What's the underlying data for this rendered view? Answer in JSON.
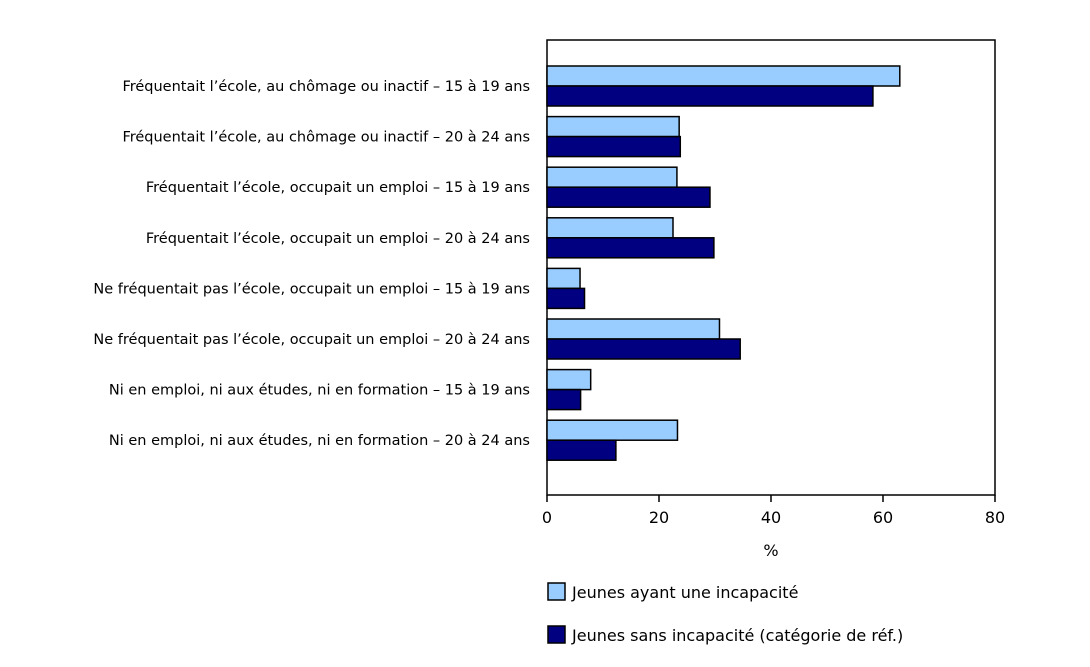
{
  "chart_data": {
    "type": "bar",
    "orientation": "horizontal",
    "categories": [
      "Fréquentait l’école, au chômage ou inactif – 15 à 19 ans",
      "Fréquentait l’école, au chômage ou inactif – 20 à 24 ans",
      "Fréquentait l’école, occupait un emploi – 15 à 19 ans",
      "Fréquentait l’école, occupait un emploi – 20 à 24 ans",
      "Ne fréquentait pas l’école, occupait un emploi – 15 à 19 ans",
      "Ne fréquentait pas l’école, occupait un emploi – 20 à 24 ans",
      "Ni en emploi, ni aux études, ni en formation – 15 à 19 ans",
      "Ni en emploi, ni aux études, ni en formation – 20 à 24 ans"
    ],
    "series": [
      {
        "name": "Jeunes ayant une incapacité",
        "color": "#99ccff",
        "values": [
          63.0,
          23.6,
          23.2,
          22.5,
          5.9,
          30.8,
          7.8,
          23.3
        ]
      },
      {
        "name": "Jeunes sans incapacité (catégorie de réf.)",
        "color": "#000080",
        "values": [
          58.2,
          23.8,
          29.1,
          29.8,
          6.7,
          34.5,
          6.0,
          12.3
        ]
      }
    ],
    "xlabel": "%",
    "xlim": [
      0,
      80
    ],
    "xticks": [
      "0",
      "20",
      "40",
      "60",
      "80"
    ],
    "grid": false,
    "legend_position": "bottom"
  }
}
